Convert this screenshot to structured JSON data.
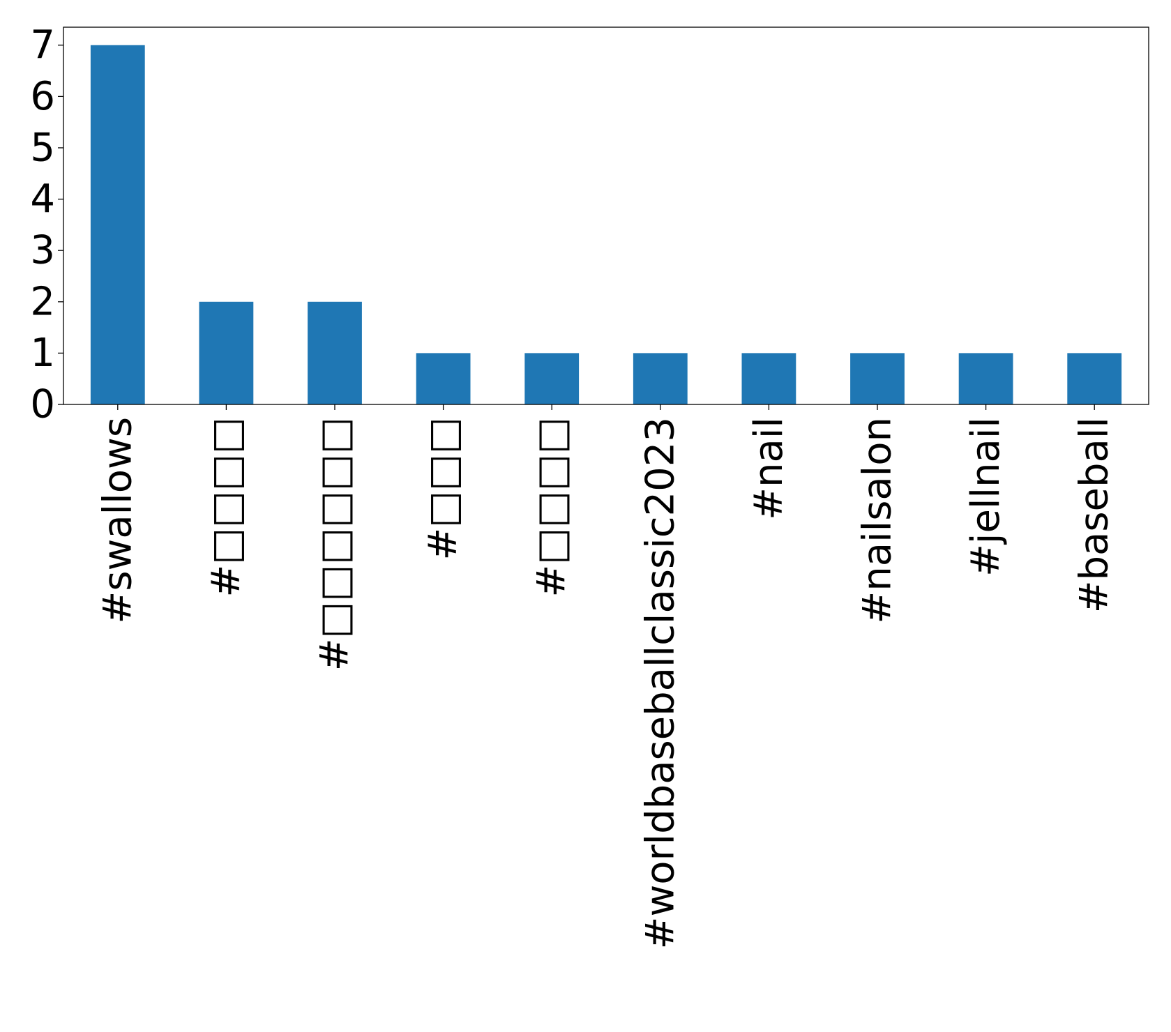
{
  "chart_data": {
    "type": "bar",
    "title": "",
    "xlabel": "",
    "ylabel": "",
    "categories": [
      "#swallows",
      "#□□□□",
      "#□□□□□□",
      "#□□□",
      "#□□□□",
      "#worldbaseballclassic2023",
      "#nail",
      "#nailsalon",
      "#jellnail",
      "#baseball"
    ],
    "values": [
      7,
      2,
      2,
      1,
      1,
      1,
      1,
      1,
      1,
      1
    ],
    "ylim": [
      0,
      7.35
    ],
    "yticks": [
      0,
      1,
      2,
      3,
      4,
      5,
      6,
      7
    ],
    "grid": false,
    "legend": "none",
    "bar_color": "#1f77b4"
  }
}
